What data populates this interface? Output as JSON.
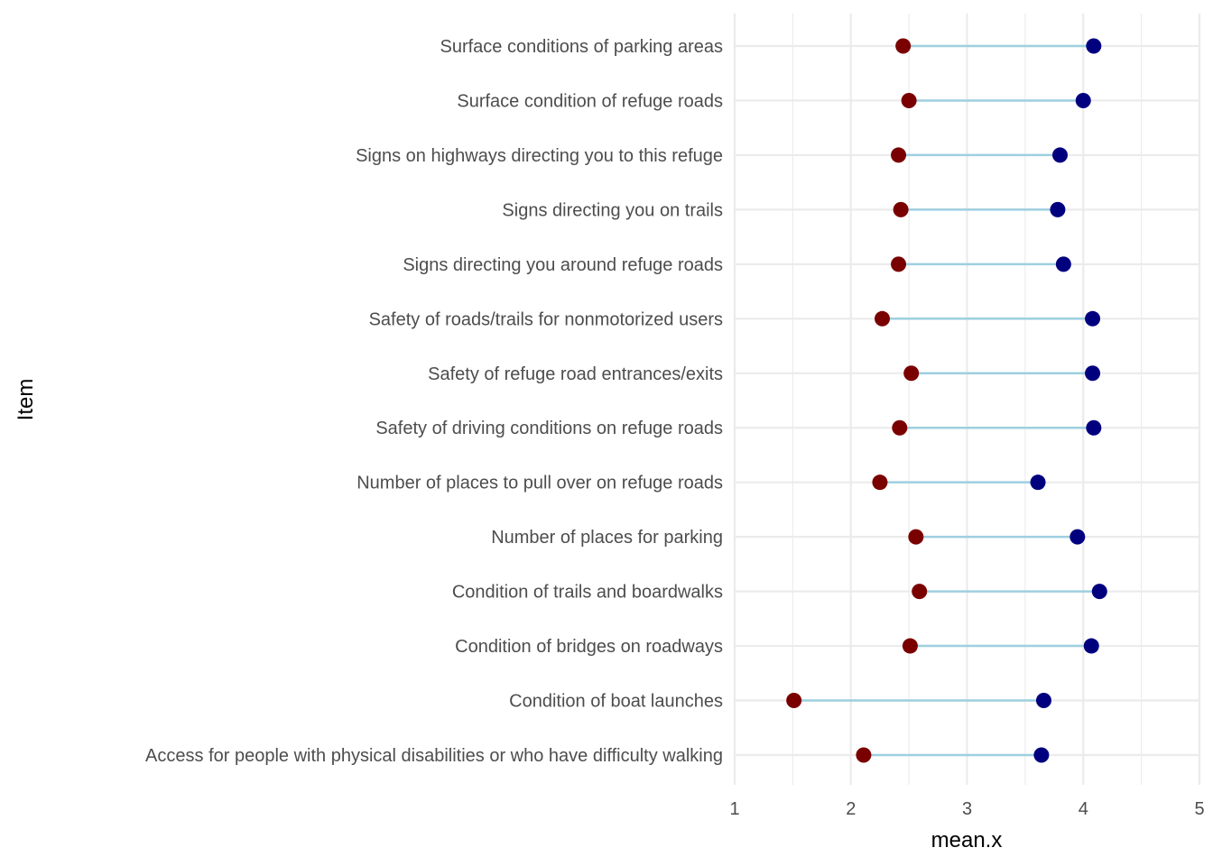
{
  "chart_data": {
    "type": "dumbbell",
    "xlabel": "mean.x",
    "ylabel": "Item",
    "xlim": [
      1,
      5
    ],
    "xticks": [
      1,
      2,
      3,
      4,
      5
    ],
    "grid": true,
    "legend": "none",
    "colors": {
      "low_point": "#7a0000",
      "high_point": "#00007f",
      "segment": "#9ecfe0",
      "grid": "#ebebeb"
    },
    "categories": [
      "Surface conditions of parking areas",
      "Surface condition of refuge roads",
      "Signs on highways directing you to this refuge",
      "Signs directing you on trails",
      "Signs directing you around refuge roads",
      "Safety of roads/trails for nonmotorized users",
      "Safety of refuge road entrances/exits",
      "Safety of driving conditions on refuge roads",
      "Number of places to pull over on refuge roads",
      "Number of places for parking",
      "Condition of trails and boardwalks",
      "Condition of bridges on roadways",
      "Condition of boat launches",
      "Access for people with physical disabilities or who have difficulty walking"
    ],
    "series": [
      {
        "values": [
          2.45,
          2.5,
          2.41,
          2.43,
          2.41,
          2.27,
          2.52,
          2.42,
          2.25,
          2.56,
          2.59,
          2.51,
          1.51,
          2.11
        ]
      },
      {
        "values": [
          4.09,
          4.0,
          3.8,
          3.78,
          3.83,
          4.08,
          4.08,
          4.09,
          3.61,
          3.95,
          4.14,
          4.07,
          3.66,
          3.64
        ]
      }
    ]
  }
}
